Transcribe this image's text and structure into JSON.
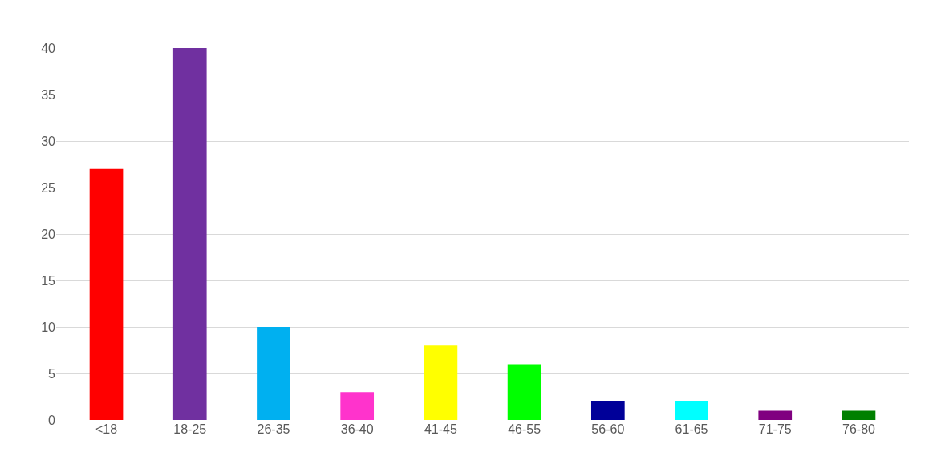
{
  "chart_data": {
    "type": "bar",
    "categories": [
      "<18",
      "18-25",
      "26-35",
      "36-40",
      "41-45",
      "46-55",
      "56-60",
      "61-65",
      "71-75",
      "76-80"
    ],
    "values": [
      27,
      40,
      10,
      3,
      8,
      6,
      2,
      2,
      1,
      1
    ],
    "colors": [
      "#ff0000",
      "#7030a0",
      "#00b0f0",
      "#ff33cc",
      "#ffff00",
      "#00ff00",
      "#000099",
      "#00ffff",
      "#800080",
      "#008000"
    ],
    "ylim": [
      0,
      40
    ],
    "yticks": [
      0,
      5,
      10,
      15,
      20,
      25,
      30,
      35,
      40
    ],
    "grid": "y"
  }
}
